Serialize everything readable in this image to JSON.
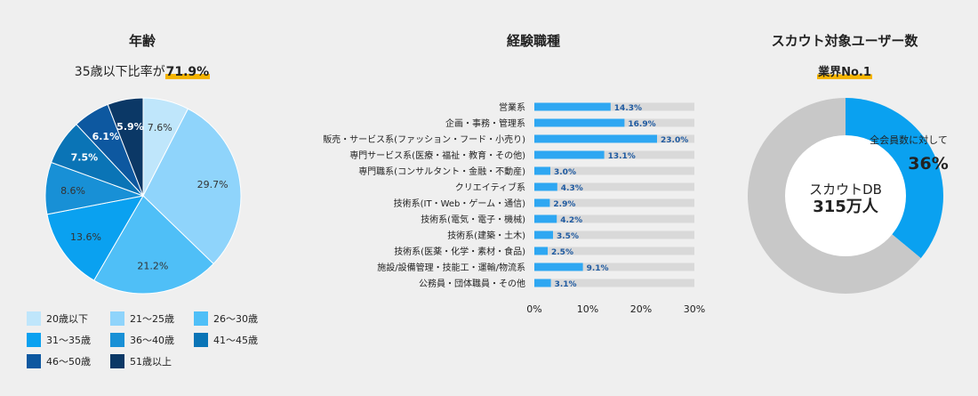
{
  "age": {
    "title": "年齢",
    "subtitle_prefix": "35歳以下比率が",
    "subtitle_value": "71.9%"
  },
  "job": {
    "title": "経験職種"
  },
  "scout": {
    "title": "スカウト対象ユーザー数",
    "badge": "業界No.1",
    "center_line1": "スカウトDB",
    "center_line2": "315万人",
    "ratio_label": "全会員数に対して",
    "ratio_value": "36%"
  },
  "chart_data": [
    {
      "type": "pie",
      "categories": [
        "20歳以下",
        "21〜25歳",
        "26〜30歳",
        "31〜35歳",
        "36〜40歳",
        "41〜45歳",
        "46〜50歳",
        "51歳以上"
      ],
      "values": [
        7.6,
        29.7,
        21.2,
        13.6,
        8.6,
        7.5,
        6.1,
        5.9
      ],
      "labels": [
        "7.6%",
        "29.7%",
        "21.2%",
        "13.6%",
        "8.6%",
        "7.5%",
        "6.1%",
        "5.9%"
      ],
      "colors": [
        "#bfe6fb",
        "#8fd4fb",
        "#4fbff7",
        "#0aa1f0",
        "#1890d6",
        "#0a74b6",
        "#0d58a0",
        "#0b3866"
      ],
      "label_colors": [
        "#333333",
        "#333333",
        "#333333",
        "#333333",
        "#333333",
        "#ffffff",
        "#ffffff",
        "#ffffff"
      ],
      "legend_placement": "bottom"
    },
    {
      "type": "bar",
      "orientation": "horizontal",
      "categories": [
        "営業系",
        "企画・事務・管理系",
        "販売・サービス系(ファッション・フード・小売り)",
        "専門サービス系(医療・福祉・教育・その他)",
        "専門職系(コンサルタント・金融・不動産)",
        "クリエイティブ系",
        "技術系(IT・Web・ゲーム・通信)",
        "技術系(電気・電子・機械)",
        "技術系(建築・土木)",
        "技術系(医薬・化学・素材・食品)",
        "施設/設備管理・技能工・運輸/物流系",
        "公務員・団体職員・その他"
      ],
      "values": [
        14.3,
        16.9,
        23.0,
        13.1,
        3.0,
        4.3,
        2.9,
        4.2,
        3.5,
        2.5,
        9.1,
        3.1
      ],
      "value_labels": [
        "14.3%",
        "16.9%",
        "23.0%",
        "13.1%",
        "3.0%",
        "4.3%",
        "2.9%",
        "4.2%",
        "3.5%",
        "2.5%",
        "9.1%",
        "3.1%"
      ],
      "xlim": [
        0,
        30
      ],
      "xticks": [
        "0%",
        "10%",
        "20%",
        "30%"
      ],
      "bar_color": "#2ea7f2",
      "track_color": "#d9d9d9",
      "label_color": "#1f5aa0"
    },
    {
      "type": "pie",
      "subtype": "donut",
      "values": [
        36,
        64
      ],
      "colors": [
        "#0aa1f0",
        "#c8c8c8"
      ]
    }
  ]
}
